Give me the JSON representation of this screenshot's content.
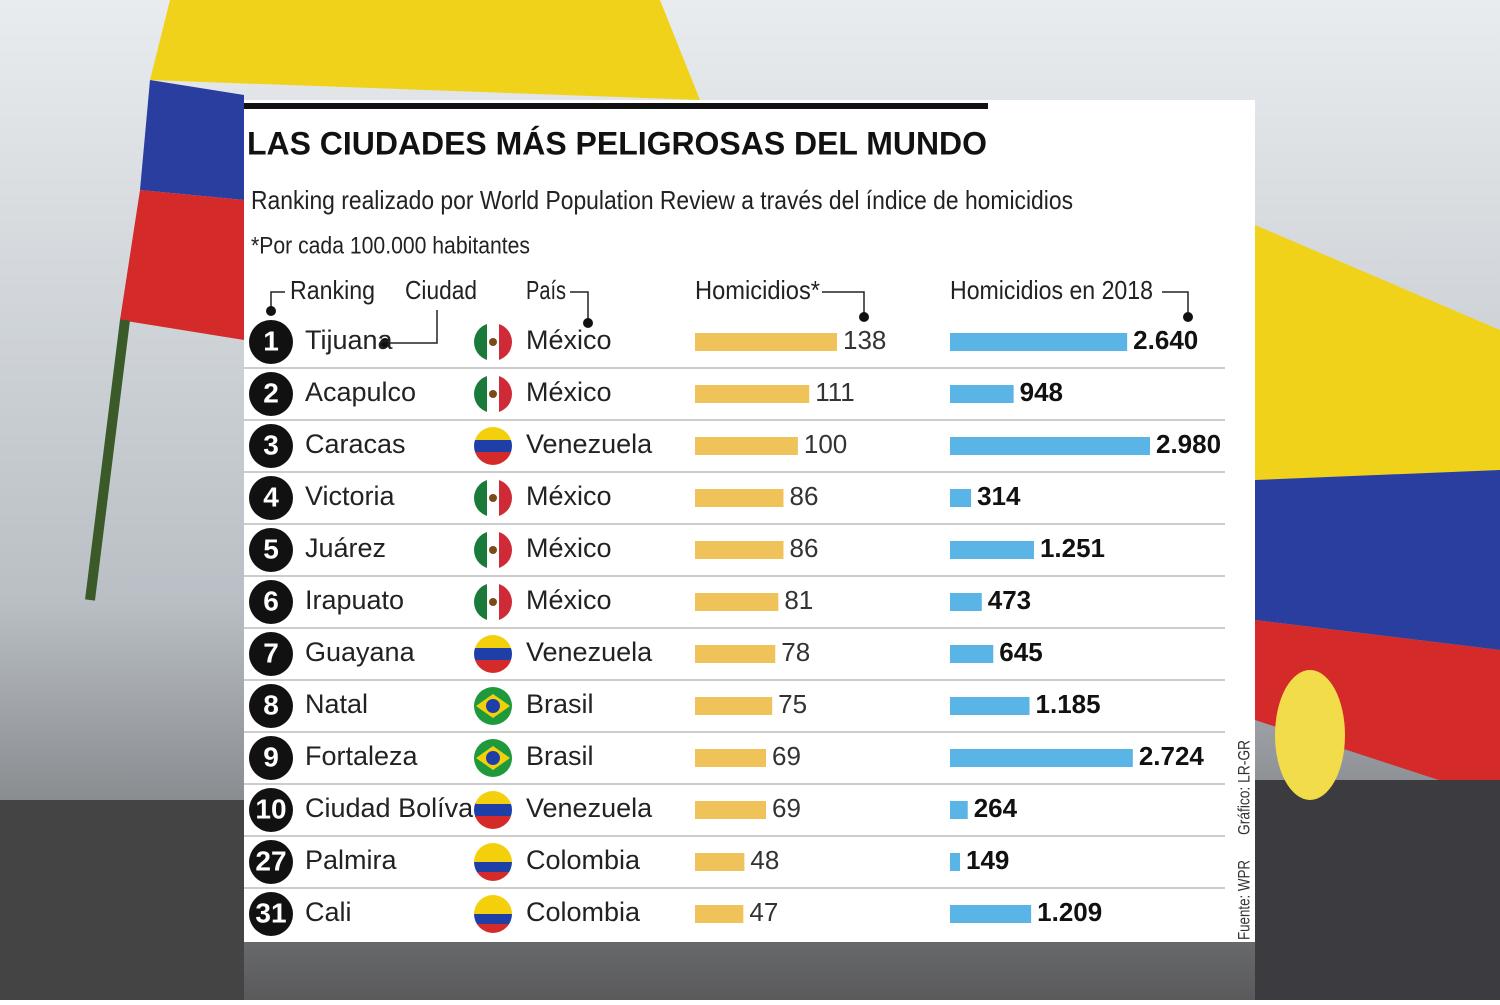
{
  "chart_data": {
    "type": "table-bars",
    "title": "LAS CIUDADES MÁS PELIGROSAS DEL MUNDO",
    "subtitle": "Ranking realizado por World Population Review a través del índice de homicidios",
    "note": "*Por cada 100.000 habitantes",
    "columns": [
      "Ranking",
      "Ciudad",
      "País"
    ],
    "ranks": [
      1,
      2,
      3,
      4,
      5,
      6,
      7,
      8,
      9,
      10,
      27,
      31
    ],
    "categories": [
      "Tijuana",
      "Acapulco",
      "Caracas",
      "Victoria",
      "Juárez",
      "Irapuato",
      "Guayana",
      "Natal",
      "Fortaleza",
      "Ciudad Bolívar",
      "Palmira",
      "Cali"
    ],
    "countries": [
      "México",
      "México",
      "Venezuela",
      "México",
      "México",
      "México",
      "Venezuela",
      "Brasil",
      "Brasil",
      "Venezuela",
      "Colombia",
      "Colombia"
    ],
    "series": [
      {
        "name": "Homicidios*",
        "color": "#f0c35a",
        "values": [
          138,
          111,
          100,
          86,
          86,
          81,
          78,
          75,
          69,
          69,
          48,
          47
        ]
      },
      {
        "name": "Homicidios en 2018",
        "color": "#5ab4e5",
        "values": [
          2640,
          948,
          2980,
          314,
          1251,
          473,
          645,
          1185,
          2724,
          264,
          149,
          1209
        ],
        "value_labels": [
          "2.640",
          "948",
          "2.980",
          "314",
          "1.251",
          "473",
          "645",
          "1.185",
          "2.724",
          "264",
          "149",
          "1.209"
        ]
      }
    ],
    "source": "Fuente: WPR",
    "credit": "Gráfico: LR-GR"
  }
}
